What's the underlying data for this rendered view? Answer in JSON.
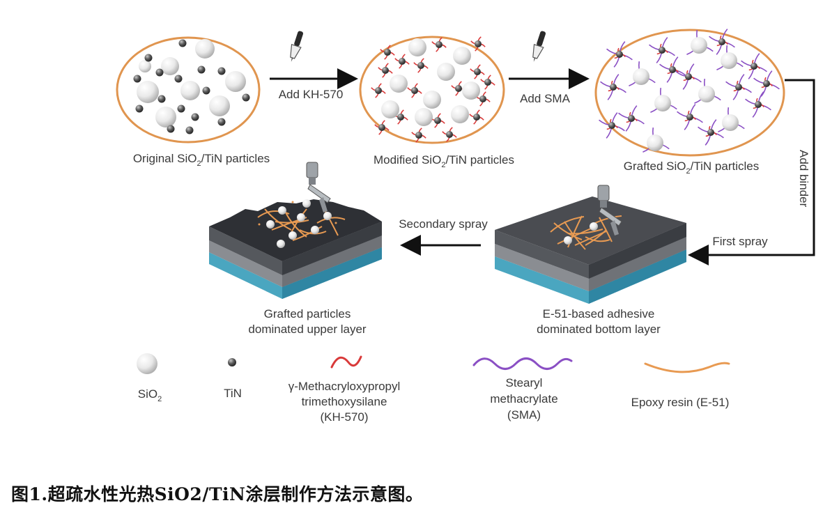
{
  "top_row": {
    "original": {
      "label_pre": "Original SiO",
      "label_sub": "2",
      "label_post": "/TiN particles"
    },
    "modified": {
      "label_pre": "Modified SiO",
      "label_sub": "2",
      "label_post": "/TiN  particles"
    },
    "grafted": {
      "label_pre": "Grafted SiO",
      "label_sub": "2",
      "label_post": "/TiN particles"
    }
  },
  "steps": {
    "add_kh570": "Add KH-570",
    "add_sma": "Add SMA",
    "add_binder": "Add binder",
    "first_spray": "First spray",
    "secondary_spray": "Secondary spray"
  },
  "layers": {
    "upper": {
      "line1": "Grafted particles",
      "line2": "dominated upper layer"
    },
    "bottom": {
      "line1": "E-51-based adhesive",
      "line2": "dominated bottom layer"
    }
  },
  "legend": {
    "sio2_pre": "SiO",
    "sio2_sub": "2",
    "tin": "TiN",
    "kh570_line1": "γ-Methacryloxypropyl",
    "kh570_line2": "trimethoxysilane",
    "kh570_line3": "(KH-570)",
    "sma_line1": "Stearyl",
    "sma_line2": "methacrylate",
    "sma_line3": "(SMA)",
    "epoxy": "Epoxy resin (E-51)"
  },
  "caption": "图1.超疏水性光热SiO2/TiN涂层制作方法示意图。",
  "colors": {
    "ellipse_border": "#e0954f",
    "kh570": "#d93a3a",
    "sma": "#8a4fc4",
    "epoxy": "#e89a52",
    "substrate_blue": "#4aa6c0",
    "coating_dark": "#3d3f44",
    "coating_mid": "#8a8d92"
  }
}
